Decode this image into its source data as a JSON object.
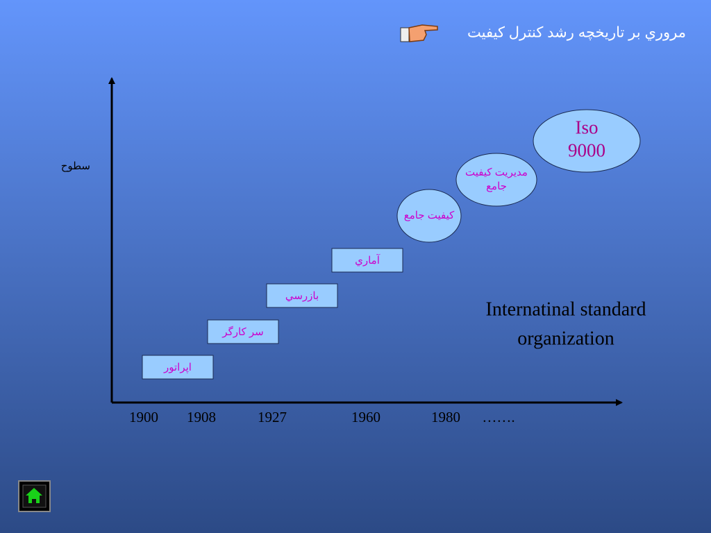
{
  "header": {
    "title": "مروري بر تاريخچه رشد كنترل كيفيت"
  },
  "axis": {
    "y_label": "سطوح",
    "x_labels": [
      "1900",
      "1908",
      "1927",
      "1960",
      "1980",
      "……."
    ]
  },
  "boxes": [
    "اپراتور",
    "سر كارگر",
    "بازرسي",
    "آماري"
  ],
  "ellipses": [
    {
      "lines": [
        "كيفيت جامع"
      ]
    },
    {
      "lines": [
        "مديريت كيفيت",
        "جامع"
      ]
    },
    {
      "lines": [
        "Iso",
        "9000"
      ]
    }
  ],
  "note": {
    "lines": [
      "Internatinal standard",
      "organization"
    ]
  }
}
